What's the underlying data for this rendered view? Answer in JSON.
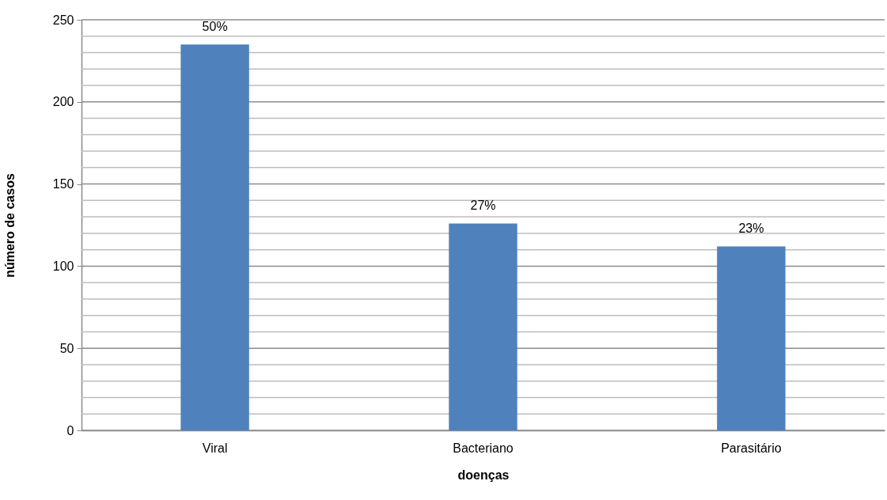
{
  "chart_data": {
    "type": "bar",
    "xlabel": "doenças",
    "ylabel": "número de casos",
    "categories": [
      "Viral",
      "Bacteriano",
      "Parasitário"
    ],
    "values": [
      235,
      126,
      112
    ],
    "annotations": [
      {
        "text": "50%",
        "x": "Viral",
        "y": 235
      },
      {
        "text": "27%",
        "x": "Bacteriano",
        "y": 126
      },
      {
        "text": "23%",
        "x": "Parasitário",
        "y": 112
      }
    ],
    "color": "#4f81bd",
    "ylim": [
      0,
      250
    ],
    "yticks": [
      0,
      {
        "value": 10,
        "label": null
      },
      {
        "value": 20,
        "label": null
      },
      {
        "value": 30,
        "label": null
      },
      {
        "value": 40,
        "label": null
      },
      50,
      {
        "value": 60,
        "label": null
      },
      {
        "value": 70,
        "label": null
      },
      {
        "value": 80,
        "label": null
      },
      {
        "value": 90,
        "label": null
      },
      100,
      {
        "value": 110,
        "label": null
      },
      {
        "value": 120,
        "label": null
      },
      {
        "value": 130,
        "label": null
      },
      {
        "value": 140,
        "label": null
      },
      150,
      {
        "value": 160,
        "label": null
      },
      {
        "value": 170,
        "label": null
      },
      {
        "value": 180,
        "label": null
      },
      {
        "value": 190,
        "label": null
      },
      200,
      {
        "value": 210,
        "label": null
      },
      {
        "value": 220,
        "label": null
      },
      {
        "value": 230,
        "label": null
      },
      {
        "value": 240,
        "label": null
      },
      250
    ],
    "grid": "y"
  }
}
